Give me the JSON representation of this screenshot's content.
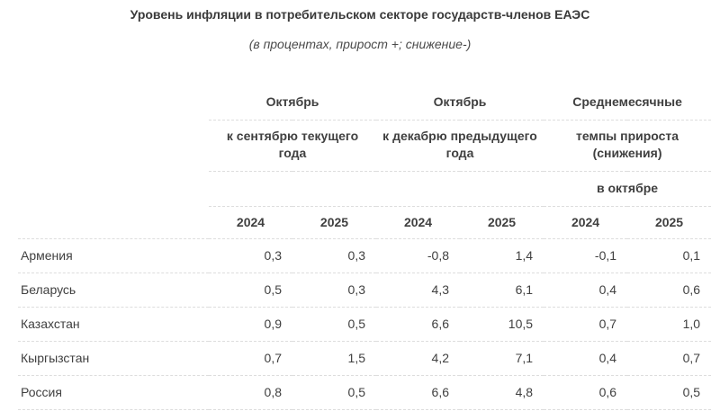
{
  "title": "Уровень инфляции в потребительском секторе государств-членов ЕАЭС",
  "subtitle": "(в процентах, прирост +; снижение-)",
  "colors": {
    "background": "#ffffff",
    "text": "#404040",
    "divider": "#dddddd"
  },
  "table": {
    "col_groups": [
      {
        "line1": "Октябрь",
        "line2": "к сентябрю текущего года",
        "line3": ""
      },
      {
        "line1": "Октябрь",
        "line2": "к декабрю предыдущего года",
        "line3": ""
      },
      {
        "line1": "Среднемесячные",
        "line2": "темпы прироста (снижения)",
        "line3": "в октябре"
      }
    ],
    "year_headers": [
      "2024",
      "2025",
      "2024",
      "2025",
      "2024",
      "2025"
    ],
    "rows": [
      {
        "country": "Армения",
        "values": [
          "0,3",
          "0,3",
          "-0,8",
          "1,4",
          "-0,1",
          "0,1"
        ]
      },
      {
        "country": "Беларусь",
        "values": [
          "0,5",
          "0,3",
          "4,3",
          "6,1",
          "0,4",
          "0,6"
        ]
      },
      {
        "country": "Казахстан",
        "values": [
          "0,9",
          "0,5",
          "6,6",
          "10,5",
          "0,7",
          "1,0"
        ]
      },
      {
        "country": "Кыргызстан",
        "values": [
          "0,7",
          "1,5",
          "4,2",
          "7,1",
          "0,4",
          "0,7"
        ]
      },
      {
        "country": "Россия",
        "values": [
          "0,8",
          "0,5",
          "6,6",
          "4,8",
          "0,6",
          "0,5"
        ]
      }
    ]
  }
}
